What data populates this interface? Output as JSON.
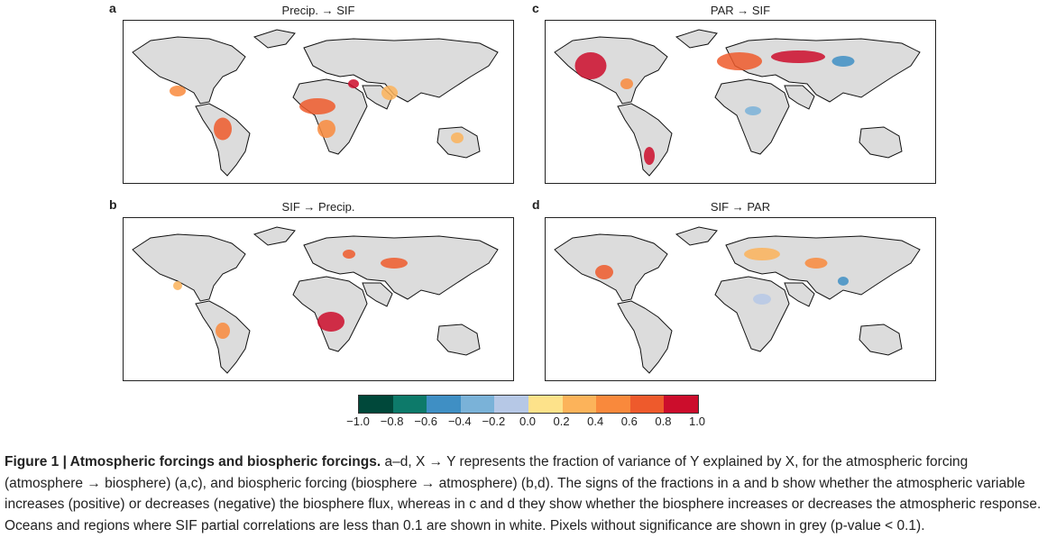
{
  "panels": [
    {
      "letter": "a",
      "title": "Precip. → SIF"
    },
    {
      "letter": "b",
      "title": "SIF → Precip."
    },
    {
      "letter": "c",
      "title": "PAR → SIF"
    },
    {
      "letter": "d",
      "title": "SIF → PAR"
    }
  ],
  "colorbar": {
    "colors": [
      "#00483a",
      "#0d7a6a",
      "#3f8fc4",
      "#7ab2d8",
      "#b6c8e6",
      "#fde28a",
      "#fcb35a",
      "#f9893c",
      "#ee5a2c",
      "#cc0d2c",
      "#800020"
    ],
    "ticks": [
      "−1.0",
      "−0.8",
      "−0.6",
      "−0.4",
      "−0.2",
      "0.0",
      "0.2",
      "0.4",
      "0.6",
      "0.8",
      "1.0"
    ]
  },
  "caption": {
    "bold": "Figure 1 | Atmospheric forcings and biospheric forcings.",
    "text": " a–d, X → Y represents the fraction of variance of Y explained by X, for the atmospheric forcing (atmosphere → biosphere) (a,c), and biospheric forcing (biosphere → atmosphere) (b,d). The signs of the fractions in a and b show whether the atmospheric variable increases (positive) or decreases (negative) the biosphere flux, whereas in c and d they show whether the biosphere increases or decreases the atmospheric response. Oceans and regions where SIF partial correlations are less than 0.1 are shown in white. Pixels without significance are shown in grey (p-value < 0.1)."
  }
}
